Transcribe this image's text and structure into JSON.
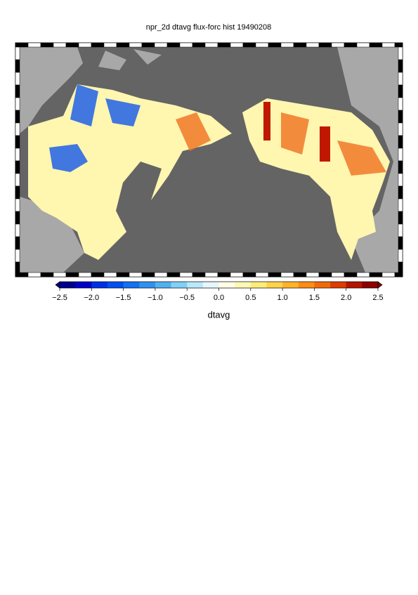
{
  "title": "npr_2d dtavg flux-forc hist 19490208",
  "colorbar": {
    "label": "dtavg",
    "lim": [
      -2.5,
      2.5
    ],
    "ticks": [
      {
        "value": -2.5,
        "label": "−2.5"
      },
      {
        "value": -2,
        "label": "−2.0"
      },
      {
        "value": -1.5,
        "label": "−1.5"
      },
      {
        "value": -1,
        "label": "−1.0"
      },
      {
        "value": -0.5,
        "label": "−0.5"
      },
      {
        "value": 0,
        "label": "0.0"
      },
      0.5,
      {
        "value": 1,
        "label": "1.0"
      },
      1.5,
      {
        "value": 2,
        "label": "2.0"
      },
      2.5
    ],
    "colors": [
      "#00008c",
      "#0000c8",
      "#0030e6",
      "#0050f0",
      "#1470f0",
      "#3090f0",
      "#50b0f0",
      "#80d0f8",
      "#b8e8fa",
      "#e6f6fb",
      "#fffde6",
      "#fff8b4",
      "#ffec78",
      "#ffd24a",
      "#ffb428",
      "#ff8c14",
      "#f06a0a",
      "#dc3c00",
      "#b41400",
      "#8c0000"
    ]
  }
}
